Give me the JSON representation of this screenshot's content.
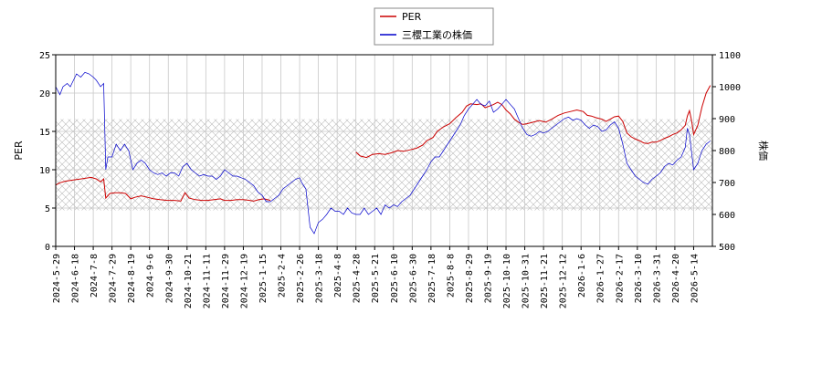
{
  "chart_data": {
    "type": "line",
    "x_tick_labels": [
      "2024-5-29",
      "2024-6-18",
      "2024-7-8",
      "2024-7-29",
      "2024-8-19",
      "2024-9-6",
      "2024-9-30",
      "2024-10-21",
      "2024-11-11",
      "2024-11-29",
      "2024-12-19",
      "2025-1-15",
      "2025-2-4",
      "2025-2-26",
      "2025-3-18",
      "2025-4-8",
      "2025-4-28",
      "2025-5-21",
      "2025-6-10",
      "2025-6-30",
      "2025-7-18",
      "2025-8-8",
      "2025-8-29",
      "2025-9-19",
      "2025-10-10",
      "2025-10-31",
      "2025-11-21",
      "2025-12-12",
      "2026-1-6",
      "2026-1-27",
      "2026-2-17",
      "2026-3-10",
      "2026-3-31",
      "2026-4-20",
      "2026-5-14"
    ],
    "left_axis": {
      "label": "PER",
      "min": 0,
      "max": 25,
      "ticks": [
        0,
        5,
        10,
        15,
        20,
        25
      ]
    },
    "right_axis": {
      "label": "株価",
      "min": 500,
      "max": 1100,
      "ticks": [
        500,
        600,
        700,
        800,
        900,
        1000,
        1100
      ]
    },
    "band": {
      "low": 4.7,
      "high": 16.6,
      "hatched": true
    },
    "grid": true,
    "legend_position": "top-center",
    "series": [
      {
        "name": "PER",
        "axis": "left",
        "color": "#cc0000",
        "points": [
          [
            0,
            8.0
          ],
          [
            4,
            8.3
          ],
          [
            9,
            8.5
          ],
          [
            14,
            8.6
          ],
          [
            19,
            8.7
          ],
          [
            24,
            8.8
          ],
          [
            29,
            8.9
          ],
          [
            34,
            9.0
          ],
          [
            39,
            8.8
          ],
          [
            43,
            8.4
          ],
          [
            46,
            8.8
          ],
          [
            48,
            6.3
          ],
          [
            52,
            6.9
          ],
          [
            57,
            7.0
          ],
          [
            62,
            7.0
          ],
          [
            67,
            6.9
          ],
          [
            72,
            6.2
          ],
          [
            76,
            6.4
          ],
          [
            82,
            6.6
          ],
          [
            88,
            6.4
          ],
          [
            94,
            6.2
          ],
          [
            100,
            6.1
          ],
          [
            107,
            6.0
          ],
          [
            114,
            6.0
          ],
          [
            120,
            5.9
          ],
          [
            124,
            7.0
          ],
          [
            128,
            6.3
          ],
          [
            134,
            6.1
          ],
          [
            140,
            6.0
          ],
          [
            146,
            6.0
          ],
          [
            152,
            6.1
          ],
          [
            158,
            6.2
          ],
          [
            162,
            6.0
          ],
          [
            168,
            6.0
          ],
          [
            174,
            6.1
          ],
          [
            180,
            6.1
          ],
          [
            186,
            6.0
          ],
          [
            190,
            5.9
          ],
          [
            195,
            6.1
          ],
          [
            200,
            6.2
          ],
          [
            206,
            6.0
          ],
          null,
          [
            288,
            12.3
          ],
          [
            292,
            11.8
          ],
          [
            298,
            11.6
          ],
          [
            304,
            12.0
          ],
          [
            310,
            12.1
          ],
          [
            316,
            12.0
          ],
          [
            322,
            12.2
          ],
          [
            328,
            12.5
          ],
          [
            334,
            12.4
          ],
          [
            340,
            12.6
          ],
          [
            346,
            12.8
          ],
          [
            352,
            13.2
          ],
          [
            356,
            13.8
          ],
          [
            362,
            14.2
          ],
          [
            366,
            15.0
          ],
          [
            372,
            15.6
          ],
          [
            378,
            16.0
          ],
          [
            384,
            16.8
          ],
          [
            390,
            17.5
          ],
          [
            394,
            18.3
          ],
          [
            398,
            18.6
          ],
          [
            404,
            18.5
          ],
          [
            408,
            18.6
          ],
          [
            412,
            18.1
          ],
          [
            416,
            18.3
          ],
          [
            420,
            18.5
          ],
          [
            424,
            18.8
          ],
          [
            428,
            18.5
          ],
          [
            432,
            17.8
          ],
          [
            436,
            17.3
          ],
          [
            440,
            16.6
          ],
          [
            444,
            16.2
          ],
          [
            448,
            15.9
          ],
          [
            452,
            16.0
          ],
          [
            458,
            16.2
          ],
          [
            464,
            16.4
          ],
          [
            470,
            16.2
          ],
          [
            476,
            16.6
          ],
          [
            482,
            17.1
          ],
          [
            488,
            17.4
          ],
          [
            494,
            17.6
          ],
          [
            500,
            17.8
          ],
          [
            506,
            17.6
          ],
          [
            510,
            17.1
          ],
          [
            514,
            17.0
          ],
          [
            518,
            16.8
          ],
          [
            524,
            16.6
          ],
          [
            528,
            16.3
          ],
          [
            532,
            16.6
          ],
          [
            536,
            16.9
          ],
          [
            540,
            17.0
          ],
          [
            544,
            16.3
          ],
          [
            548,
            14.8
          ],
          [
            552,
            14.3
          ],
          [
            556,
            14.0
          ],
          [
            560,
            13.8
          ],
          [
            564,
            13.5
          ],
          [
            568,
            13.4
          ],
          [
            572,
            13.6
          ],
          [
            576,
            13.6
          ],
          [
            580,
            13.8
          ],
          [
            584,
            14.1
          ],
          [
            588,
            14.3
          ],
          [
            592,
            14.6
          ],
          [
            596,
            14.8
          ],
          [
            600,
            15.2
          ],
          [
            604,
            15.8
          ],
          [
            606,
            17.0
          ],
          [
            608,
            17.7
          ],
          [
            610,
            16.4
          ],
          [
            612,
            14.6
          ],
          [
            616,
            15.8
          ],
          [
            620,
            18.2
          ],
          [
            624,
            20.0
          ],
          [
            628,
            21.0
          ]
        ]
      },
      {
        "name": "三櫻工業の株価",
        "axis": "right",
        "color": "#0000cc",
        "points": [
          [
            0,
            1000
          ],
          [
            4,
            975
          ],
          [
            7,
            1000
          ],
          [
            11,
            1010
          ],
          [
            14,
            1000
          ],
          [
            17,
            1020
          ],
          [
            20,
            1040
          ],
          [
            24,
            1030
          ],
          [
            28,
            1045
          ],
          [
            32,
            1040
          ],
          [
            36,
            1030
          ],
          [
            39,
            1020
          ],
          [
            43,
            1000
          ],
          [
            46,
            1010
          ],
          [
            48,
            740
          ],
          [
            50,
            780
          ],
          [
            54,
            780
          ],
          [
            58,
            820
          ],
          [
            62,
            800
          ],
          [
            66,
            820
          ],
          [
            70,
            800
          ],
          [
            74,
            740
          ],
          [
            78,
            760
          ],
          [
            82,
            770
          ],
          [
            86,
            760
          ],
          [
            90,
            740
          ],
          [
            94,
            730
          ],
          [
            98,
            725
          ],
          [
            102,
            730
          ],
          [
            106,
            720
          ],
          [
            110,
            730
          ],
          [
            114,
            730
          ],
          [
            118,
            720
          ],
          [
            122,
            750
          ],
          [
            126,
            760
          ],
          [
            130,
            740
          ],
          [
            134,
            730
          ],
          [
            138,
            720
          ],
          [
            142,
            725
          ],
          [
            146,
            720
          ],
          [
            150,
            720
          ],
          [
            154,
            710
          ],
          [
            158,
            720
          ],
          [
            162,
            740
          ],
          [
            166,
            730
          ],
          [
            170,
            720
          ],
          [
            174,
            720
          ],
          [
            178,
            715
          ],
          [
            182,
            710
          ],
          [
            186,
            700
          ],
          [
            190,
            690
          ],
          [
            194,
            670
          ],
          [
            198,
            660
          ],
          [
            202,
            640
          ],
          [
            206,
            640
          ],
          [
            210,
            650
          ],
          [
            214,
            660
          ],
          [
            218,
            680
          ],
          [
            222,
            690
          ],
          [
            226,
            700
          ],
          [
            230,
            710
          ],
          [
            234,
            715
          ],
          [
            236,
            700
          ],
          [
            238,
            690
          ],
          [
            240,
            680
          ],
          [
            244,
            560
          ],
          [
            248,
            540
          ],
          [
            252,
            575
          ],
          [
            256,
            585
          ],
          [
            260,
            600
          ],
          [
            264,
            620
          ],
          [
            268,
            610
          ],
          [
            272,
            610
          ],
          [
            276,
            600
          ],
          [
            280,
            620
          ],
          [
            284,
            605
          ],
          [
            288,
            600
          ],
          [
            292,
            600
          ],
          [
            296,
            620
          ],
          [
            300,
            600
          ],
          [
            304,
            610
          ],
          [
            308,
            620
          ],
          [
            312,
            600
          ],
          [
            316,
            630
          ],
          [
            320,
            620
          ],
          [
            324,
            630
          ],
          [
            328,
            625
          ],
          [
            332,
            640
          ],
          [
            336,
            650
          ],
          [
            340,
            660
          ],
          [
            344,
            680
          ],
          [
            348,
            700
          ],
          [
            352,
            720
          ],
          [
            356,
            740
          ],
          [
            360,
            765
          ],
          [
            364,
            780
          ],
          [
            368,
            780
          ],
          [
            372,
            800
          ],
          [
            376,
            820
          ],
          [
            380,
            840
          ],
          [
            384,
            860
          ],
          [
            388,
            880
          ],
          [
            392,
            910
          ],
          [
            396,
            930
          ],
          [
            400,
            945
          ],
          [
            404,
            960
          ],
          [
            408,
            945
          ],
          [
            412,
            940
          ],
          [
            416,
            955
          ],
          [
            420,
            920
          ],
          [
            424,
            930
          ],
          [
            428,
            945
          ],
          [
            432,
            960
          ],
          [
            436,
            945
          ],
          [
            440,
            930
          ],
          [
            444,
            900
          ],
          [
            448,
            870
          ],
          [
            452,
            850
          ],
          [
            456,
            845
          ],
          [
            460,
            850
          ],
          [
            464,
            860
          ],
          [
            468,
            855
          ],
          [
            472,
            860
          ],
          [
            476,
            870
          ],
          [
            480,
            880
          ],
          [
            484,
            890
          ],
          [
            488,
            900
          ],
          [
            492,
            905
          ],
          [
            496,
            895
          ],
          [
            500,
            900
          ],
          [
            504,
            895
          ],
          [
            508,
            880
          ],
          [
            512,
            870
          ],
          [
            516,
            880
          ],
          [
            520,
            875
          ],
          [
            524,
            860
          ],
          [
            528,
            865
          ],
          [
            532,
            880
          ],
          [
            536,
            890
          ],
          [
            540,
            870
          ],
          [
            544,
            820
          ],
          [
            548,
            760
          ],
          [
            552,
            740
          ],
          [
            556,
            720
          ],
          [
            560,
            710
          ],
          [
            564,
            700
          ],
          [
            568,
            695
          ],
          [
            572,
            710
          ],
          [
            576,
            720
          ],
          [
            580,
            730
          ],
          [
            584,
            750
          ],
          [
            588,
            760
          ],
          [
            592,
            755
          ],
          [
            596,
            770
          ],
          [
            600,
            780
          ],
          [
            604,
            810
          ],
          [
            606,
            870
          ],
          [
            608,
            850
          ],
          [
            612,
            740
          ],
          [
            616,
            760
          ],
          [
            620,
            800
          ],
          [
            624,
            820
          ],
          [
            628,
            830
          ]
        ]
      }
    ]
  }
}
